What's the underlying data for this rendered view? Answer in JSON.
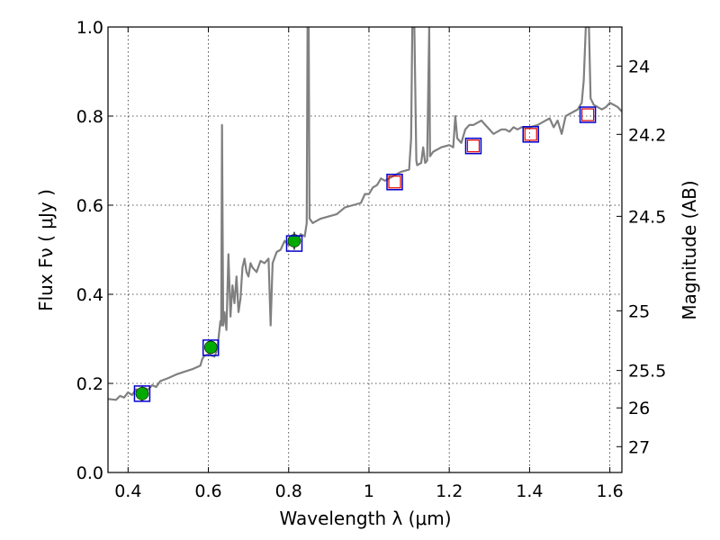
{
  "chart_data": {
    "type": "line",
    "title": "",
    "xlabel": "Wavelength  λ (μm)",
    "ylabel": "Flux  Fν  ( μJy )",
    "ylabel_right": "Magnitude (AB)",
    "xlim": [
      0.35,
      1.63
    ],
    "ylim": [
      0,
      1.0
    ],
    "grid": true,
    "x_ticks": [
      {
        "value": 0.4,
        "label": "0.4"
      },
      {
        "value": 0.6,
        "label": "0.6"
      },
      {
        "value": 0.8,
        "label": "0.8"
      },
      {
        "value": 1.0,
        "label": "1"
      },
      {
        "value": 1.2,
        "label": "1.2"
      },
      {
        "value": 1.4,
        "label": "1.4"
      },
      {
        "value": 1.6,
        "label": "1.6"
      }
    ],
    "y_ticks": [
      {
        "value": 0.0,
        "label": "0.0"
      },
      {
        "value": 0.2,
        "label": "0.2"
      },
      {
        "value": 0.4,
        "label": "0.4"
      },
      {
        "value": 0.6,
        "label": "0.6"
      },
      {
        "value": 0.8,
        "label": "0.8"
      },
      {
        "value": 1.0,
        "label": "1.0"
      }
    ],
    "right_ticks": [
      {
        "label": "24",
        "flux": 0.912
      },
      {
        "label": "24.2",
        "flux": 0.759
      },
      {
        "label": "24.5",
        "flux": 0.575
      },
      {
        "label": "25",
        "flux": 0.363
      },
      {
        "label": "25.5",
        "flux": 0.229
      },
      {
        "label": "26",
        "flux": 0.145
      },
      {
        "label": "27",
        "flux": 0.058
      }
    ],
    "series": [
      {
        "kind": "model-spectrum",
        "color": "#808080",
        "points": [
          [
            0.35,
            0.165
          ],
          [
            0.37,
            0.163
          ],
          [
            0.38,
            0.172
          ],
          [
            0.39,
            0.168
          ],
          [
            0.4,
            0.18
          ],
          [
            0.41,
            0.174
          ],
          [
            0.42,
            0.187
          ],
          [
            0.43,
            0.179
          ],
          [
            0.44,
            0.19
          ],
          [
            0.45,
            0.186
          ],
          [
            0.46,
            0.196
          ],
          [
            0.47,
            0.192
          ],
          [
            0.48,
            0.205
          ],
          [
            0.5,
            0.212
          ],
          [
            0.52,
            0.22
          ],
          [
            0.54,
            0.226
          ],
          [
            0.56,
            0.232
          ],
          [
            0.58,
            0.24
          ],
          [
            0.585,
            0.255
          ],
          [
            0.59,
            0.262
          ],
          [
            0.6,
            0.265
          ],
          [
            0.61,
            0.262
          ],
          [
            0.615,
            0.26
          ],
          [
            0.62,
            0.27
          ],
          [
            0.625,
            0.3
          ],
          [
            0.63,
            0.34
          ],
          [
            0.632,
            0.33
          ],
          [
            0.634,
            0.78
          ],
          [
            0.637,
            0.33
          ],
          [
            0.64,
            0.36
          ],
          [
            0.645,
            0.32
          ],
          [
            0.65,
            0.49
          ],
          [
            0.655,
            0.35
          ],
          [
            0.66,
            0.42
          ],
          [
            0.665,
            0.38
          ],
          [
            0.67,
            0.44
          ],
          [
            0.675,
            0.36
          ],
          [
            0.68,
            0.39
          ],
          [
            0.685,
            0.46
          ],
          [
            0.69,
            0.48
          ],
          [
            0.695,
            0.45
          ],
          [
            0.7,
            0.44
          ],
          [
            0.705,
            0.47
          ],
          [
            0.71,
            0.46
          ],
          [
            0.72,
            0.45
          ],
          [
            0.73,
            0.475
          ],
          [
            0.74,
            0.47
          ],
          [
            0.75,
            0.48
          ],
          [
            0.755,
            0.33
          ],
          [
            0.76,
            0.47
          ],
          [
            0.77,
            0.495
          ],
          [
            0.78,
            0.5
          ],
          [
            0.79,
            0.52
          ],
          [
            0.8,
            0.51
          ],
          [
            0.81,
            0.525
          ],
          [
            0.82,
            0.52
          ],
          [
            0.83,
            0.535
          ],
          [
            0.84,
            0.53
          ],
          [
            0.845,
            0.56
          ],
          [
            0.847,
            1.0
          ],
          [
            0.85,
            1.0
          ],
          [
            0.852,
            0.57
          ],
          [
            0.86,
            0.56
          ],
          [
            0.88,
            0.57
          ],
          [
            0.9,
            0.575
          ],
          [
            0.92,
            0.58
          ],
          [
            0.94,
            0.595
          ],
          [
            0.96,
            0.6
          ],
          [
            0.98,
            0.605
          ],
          [
            0.99,
            0.625
          ],
          [
            1.0,
            0.625
          ],
          [
            1.01,
            0.64
          ],
          [
            1.02,
            0.645
          ],
          [
            1.03,
            0.66
          ],
          [
            1.04,
            0.655
          ],
          [
            1.06,
            0.665
          ],
          [
            1.08,
            0.675
          ],
          [
            1.1,
            0.68
          ],
          [
            1.105,
            0.75
          ],
          [
            1.108,
            1.0
          ],
          [
            1.113,
            1.0
          ],
          [
            1.118,
            0.7
          ],
          [
            1.12,
            0.69
          ],
          [
            1.13,
            0.695
          ],
          [
            1.135,
            0.73
          ],
          [
            1.14,
            0.695
          ],
          [
            1.145,
            0.7
          ],
          [
            1.15,
            1.0
          ],
          [
            1.152,
            0.71
          ],
          [
            1.16,
            0.72
          ],
          [
            1.18,
            0.73
          ],
          [
            1.2,
            0.735
          ],
          [
            1.21,
            0.73
          ],
          [
            1.215,
            0.8
          ],
          [
            1.22,
            0.75
          ],
          [
            1.23,
            0.74
          ],
          [
            1.24,
            0.77
          ],
          [
            1.25,
            0.78
          ],
          [
            1.26,
            0.78
          ],
          [
            1.27,
            0.785
          ],
          [
            1.28,
            0.79
          ],
          [
            1.29,
            0.78
          ],
          [
            1.3,
            0.77
          ],
          [
            1.31,
            0.76
          ],
          [
            1.32,
            0.765
          ],
          [
            1.33,
            0.77
          ],
          [
            1.34,
            0.77
          ],
          [
            1.35,
            0.765
          ],
          [
            1.36,
            0.775
          ],
          [
            1.37,
            0.77
          ],
          [
            1.38,
            0.775
          ],
          [
            1.4,
            0.775
          ],
          [
            1.42,
            0.78
          ],
          [
            1.44,
            0.79
          ],
          [
            1.45,
            0.795
          ],
          [
            1.46,
            0.775
          ],
          [
            1.47,
            0.79
          ],
          [
            1.48,
            0.76
          ],
          [
            1.49,
            0.8
          ],
          [
            1.5,
            0.805
          ],
          [
            1.51,
            0.81
          ],
          [
            1.52,
            0.815
          ],
          [
            1.53,
            0.83
          ],
          [
            1.535,
            0.88
          ],
          [
            1.54,
            1.0
          ],
          [
            1.548,
            1.0
          ],
          [
            1.552,
            0.84
          ],
          [
            1.56,
            0.825
          ],
          [
            1.57,
            0.82
          ],
          [
            1.58,
            0.815
          ],
          [
            1.59,
            0.82
          ],
          [
            1.6,
            0.83
          ],
          [
            1.61,
            0.825
          ],
          [
            1.62,
            0.82
          ],
          [
            1.63,
            0.81
          ]
        ]
      }
    ],
    "model_photometry": {
      "color": "#0000cc",
      "points": [
        {
          "x": 0.435,
          "y": 0.177
        },
        {
          "x": 0.606,
          "y": 0.28
        },
        {
          "x": 0.814,
          "y": 0.514
        },
        {
          "x": 1.064,
          "y": 0.652
        },
        {
          "x": 1.26,
          "y": 0.733
        },
        {
          "x": 1.403,
          "y": 0.759
        },
        {
          "x": 1.545,
          "y": 0.803
        }
      ]
    },
    "detections": {
      "color": "#00aa00",
      "points": [
        {
          "x": 0.435,
          "y": 0.177,
          "err": 0.018
        },
        {
          "x": 0.606,
          "y": 0.281,
          "err": 0.015
        },
        {
          "x": 0.814,
          "y": 0.52,
          "err": 0.02
        }
      ]
    },
    "upper_limits": {
      "color": "#dd0000",
      "points": [
        {
          "x": 1.064,
          "y": 0.652
        },
        {
          "x": 1.26,
          "y": 0.733
        },
        {
          "x": 1.403,
          "y": 0.759
        },
        {
          "x": 1.545,
          "y": 0.803
        }
      ]
    }
  }
}
